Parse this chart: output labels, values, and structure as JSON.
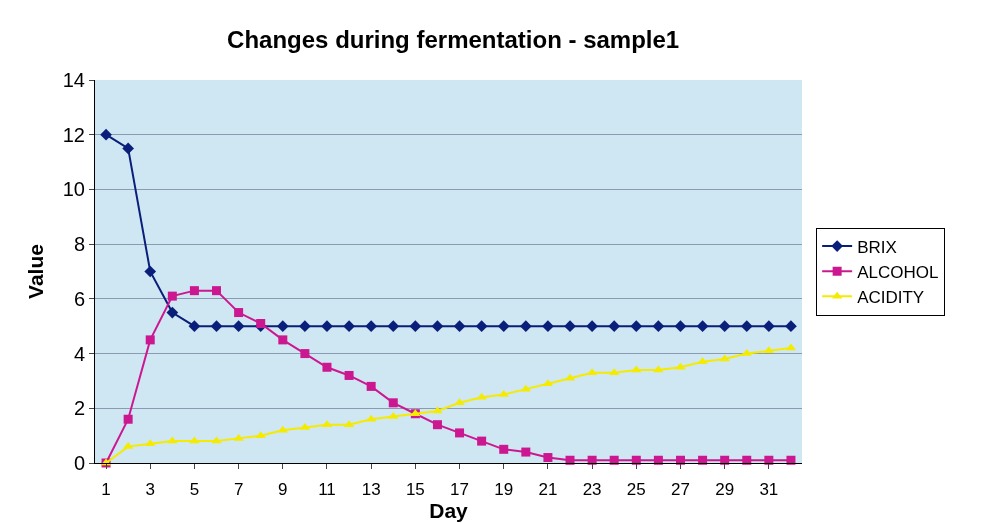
{
  "chart_data": {
    "type": "line",
    "title": "Changes during fermentation - sample1",
    "xlabel": "Day",
    "ylabel": "Value",
    "x": [
      1,
      2,
      3,
      4,
      5,
      6,
      7,
      8,
      9,
      10,
      11,
      12,
      13,
      14,
      15,
      16,
      17,
      18,
      19,
      20,
      21,
      22,
      23,
      24,
      25,
      26,
      27,
      28,
      29,
      30,
      31,
      32
    ],
    "xlim": [
      0.5,
      32.5
    ],
    "xticks": [
      1,
      3,
      5,
      7,
      9,
      11,
      13,
      15,
      17,
      19,
      21,
      23,
      25,
      27,
      29,
      31
    ],
    "ylim": [
      0,
      14
    ],
    "yticks": [
      0,
      2,
      4,
      6,
      8,
      10,
      12,
      14
    ],
    "grid": "y",
    "legend": "right",
    "series": [
      {
        "name": "BRIX",
        "color": "#0a1f7a",
        "marker": "diamond",
        "values": [
          12,
          11.5,
          7,
          5.5,
          5,
          5,
          5,
          5,
          5,
          5,
          5,
          5,
          5,
          5,
          5,
          5,
          5,
          5,
          5,
          5,
          5,
          5,
          5,
          5,
          5,
          5,
          5,
          5,
          5,
          5,
          5,
          5
        ]
      },
      {
        "name": "ALCOHOL",
        "color": "#cc1890",
        "marker": "square",
        "values": [
          0,
          1.6,
          4.5,
          6.1,
          6.3,
          6.3,
          5.5,
          5.1,
          4.5,
          4.0,
          3.5,
          3.2,
          2.8,
          2.2,
          1.8,
          1.4,
          1.1,
          0.8,
          0.5,
          0.4,
          0.2,
          0.1,
          0.1,
          0.1,
          0.1,
          0.1,
          0.1,
          0.1,
          0.1,
          0.1,
          0.1,
          0.1
        ]
      },
      {
        "name": "ACIDITY",
        "color": "#f5eb00",
        "marker": "triangle",
        "values": [
          0,
          0.6,
          0.7,
          0.8,
          0.8,
          0.8,
          0.9,
          1.0,
          1.2,
          1.3,
          1.4,
          1.4,
          1.6,
          1.7,
          1.8,
          1.9,
          2.2,
          2.4,
          2.5,
          2.7,
          2.9,
          3.1,
          3.3,
          3.3,
          3.4,
          3.4,
          3.5,
          3.7,
          3.8,
          4.0,
          4.1,
          4.2
        ]
      }
    ]
  }
}
